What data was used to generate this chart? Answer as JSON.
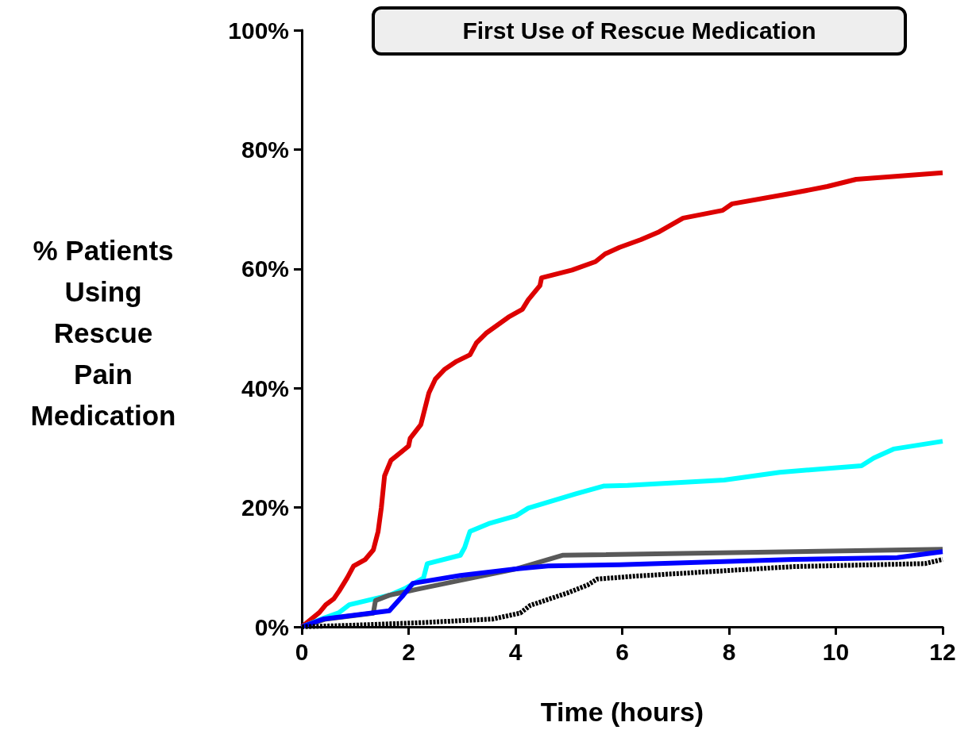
{
  "chart_data": {
    "type": "line",
    "title": "First Use of Rescue Medication",
    "xlabel": "Time (hours)",
    "ylabel": "% Patients Using Rescue Pain Medication",
    "xlim": [
      0,
      12
    ],
    "xticks": [
      0,
      2,
      4,
      6,
      8,
      10,
      12
    ],
    "ylim": [
      0,
      100
    ],
    "yticks": [
      {
        "value": 0,
        "label": "0%"
      },
      {
        "value": 20,
        "label": "20%"
      },
      {
        "value": 40,
        "label": "40%"
      },
      {
        "value": 60,
        "label": "60%"
      },
      {
        "value": 80,
        "label": "80%"
      },
      {
        "value": 100,
        "label": "100%"
      }
    ],
    "grid": false,
    "marker": "none",
    "series": [
      {
        "color": "#dd0000",
        "line_style": "solid",
        "x": [
          0,
          0.33,
          0.45,
          0.6,
          0.7,
          0.85,
          0.97,
          1.19,
          1.34,
          1.43,
          1.49,
          1.55,
          1.67,
          2.0,
          2.03,
          2.23,
          2.38,
          2.5,
          2.68,
          2.9,
          3.15,
          3.27,
          3.45,
          3.87,
          4.13,
          4.24,
          4.46,
          4.49,
          5.06,
          5.5,
          5.68,
          5.95,
          6.35,
          6.69,
          7.14,
          7.88,
          8.06,
          9.14,
          9.84,
          10.38,
          12
        ],
        "values": [
          0,
          2.4,
          3.7,
          4.7,
          6,
          8.2,
          10.2,
          11.3,
          12.9,
          16,
          20,
          25.3,
          27.9,
          30.3,
          31.6,
          33.9,
          39.2,
          41.5,
          43.2,
          44.5,
          45.6,
          47.6,
          49.2,
          51.9,
          53.2,
          54.8,
          57.2,
          58.5,
          59.8,
          61.2,
          62.5,
          63.6,
          64.9,
          66.2,
          68.5,
          69.8,
          70.9,
          72.6,
          73.8,
          75,
          76.1
        ]
      },
      {
        "color": "#00ffff",
        "line_style": "solid",
        "x": [
          0,
          0.45,
          0.7,
          0.89,
          1.64,
          1.93,
          2.28,
          2.35,
          2.97,
          3.05,
          3.15,
          3.5,
          4.01,
          4.24,
          5.13,
          5.65,
          6.1,
          7.91,
          8.95,
          10.48,
          10.71,
          11.08,
          12
        ],
        "values": [
          0,
          1.6,
          2.4,
          3.7,
          5.3,
          6.4,
          8.2,
          10.6,
          12,
          13.3,
          16,
          17.3,
          18.6,
          19.9,
          22.3,
          23.6,
          23.7,
          24.6,
          25.9,
          27,
          28.3,
          29.8,
          31.1
        ]
      },
      {
        "color": "#595959",
        "line_style": "solid",
        "x": [
          0,
          0.45,
          1.34,
          1.38,
          1.64,
          2.16,
          2.97,
          4.01,
          4.88,
          12
        ],
        "values": [
          0,
          1.3,
          2.3,
          4.4,
          5.3,
          6.3,
          7.8,
          9.7,
          12,
          13
        ]
      },
      {
        "color": "#0000ff",
        "line_style": "solid",
        "x": [
          0,
          0.4,
          1.64,
          1.9,
          2.08,
          2.97,
          4.01,
          4.61,
          5.95,
          9.22,
          11.15,
          12
        ],
        "values": [
          0,
          1.3,
          2.7,
          5.3,
          7.3,
          8.6,
          9.7,
          10.2,
          10.4,
          11.3,
          11.6,
          12.6
        ]
      },
      {
        "color": "#000000",
        "line_style": "dashed",
        "x": [
          0,
          1.04,
          2.23,
          3.57,
          4.09,
          4.28,
          4.98,
          5.35,
          5.53,
          6.25,
          7.73,
          9.22,
          11.67,
          12
        ],
        "values": [
          0,
          0.3,
          0.7,
          1.3,
          2.3,
          3.6,
          5.7,
          7.0,
          8,
          8.5,
          9.3,
          10.1,
          10.6,
          11.3
        ]
      }
    ]
  }
}
